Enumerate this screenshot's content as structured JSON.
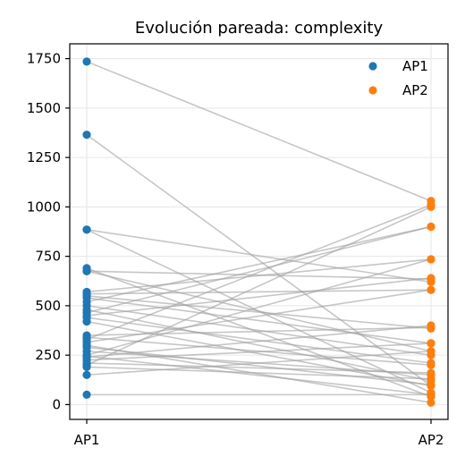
{
  "chart_data": {
    "type": "line",
    "title": "Evolución pareada: complexity",
    "xlabel": "",
    "ylabel": "",
    "categories": [
      "AP1",
      "AP2"
    ],
    "ylim": [
      -75,
      1825
    ],
    "yticks": [
      0,
      250,
      500,
      750,
      1000,
      1250,
      1500,
      1750
    ],
    "grid": true,
    "legend_position": "top-right",
    "series": [
      {
        "name": "AP1",
        "color": "#1f77b4"
      },
      {
        "name": "AP2",
        "color": "#ff7f0e"
      }
    ],
    "connector_color": "#a0a0a0",
    "pairs": [
      [
        1735,
        1030
      ],
      [
        1365,
        95
      ],
      [
        885,
        620
      ],
      [
        885,
        60
      ],
      [
        690,
        40
      ],
      [
        675,
        635
      ],
      [
        675,
        270
      ],
      [
        570,
        735
      ],
      [
        560,
        580
      ],
      [
        550,
        385
      ],
      [
        540,
        310
      ],
      [
        520,
        900
      ],
      [
        500,
        250
      ],
      [
        480,
        120
      ],
      [
        465,
        900
      ],
      [
        450,
        640
      ],
      [
        440,
        210
      ],
      [
        420,
        95
      ],
      [
        350,
        390
      ],
      [
        340,
        200
      ],
      [
        330,
        1010
      ],
      [
        315,
        580
      ],
      [
        300,
        10
      ],
      [
        290,
        100
      ],
      [
        270,
        150
      ],
      [
        250,
        735
      ],
      [
        245,
        50
      ],
      [
        240,
        400
      ],
      [
        225,
        310
      ],
      [
        210,
        160
      ],
      [
        200,
        1000
      ],
      [
        190,
        130
      ],
      [
        150,
        270
      ],
      [
        50,
        50
      ]
    ]
  }
}
